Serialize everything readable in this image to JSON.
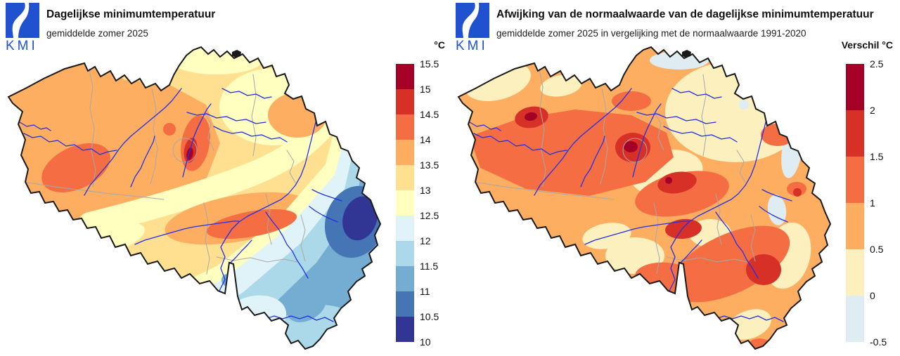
{
  "brand": {
    "logo_text": "KMI",
    "color": "#2052d0"
  },
  "left_panel": {
    "title": "Dagelijkse minimumtemperatuur",
    "subtitle": "gemiddelde zomer 2025",
    "legend": {
      "unit": "°C",
      "colors": [
        "#a50026",
        "#d73027",
        "#f46d43",
        "#fdae61",
        "#fee090",
        "#ffffbf",
        "#e0f3f8",
        "#abd9e9",
        "#74add1",
        "#4575b4",
        "#313695"
      ],
      "ticks": [
        "15.5",
        "15",
        "14.5",
        "14",
        "13.5",
        "13",
        "12.5",
        "12",
        "11.5",
        "11",
        "10.5",
        "10"
      ]
    }
  },
  "right_panel": {
    "title": "Afwijking van de normaalwaarde van de dagelijkse minimumtemperatuur",
    "subtitle": "gemiddelde zomer 2025 in vergelijking met de normaalwaarde 1991-2020",
    "legend": {
      "unit": "Verschil °C",
      "colors": [
        "#a50026",
        "#d73027",
        "#f46d43",
        "#fdae61",
        "#fdf0bf",
        "#dfecf1"
      ],
      "ticks": [
        "2.5",
        "2",
        "1.5",
        "1",
        "0.5",
        "0",
        "-0.5"
      ]
    }
  },
  "map_colors": {
    "outline": "#1a1a1a",
    "river": "#2230e8",
    "province": "#a8a8a8",
    "background": "#ffffff"
  },
  "chart_data": [
    {
      "type": "contour-map",
      "region": "Belgium",
      "title": "Dagelijkse minimumtemperatuur",
      "subtitle": "gemiddelde zomer 2025",
      "unit": "°C",
      "scale_min": 10,
      "scale_max": 15.5,
      "scale_step": 0.5,
      "pattern": "Warmest (14 to >15 °C) in central and northwest Belgium with a maximum near Brussels and West Flanders; 13-14 °C over most of Flanders and Hainaut; cooling southeastward through the Ardennes (11-12.5 °C); coldest (10-10.5 °C) in the eastern High Fens"
    },
    {
      "type": "contour-map",
      "region": "Belgium",
      "title": "Afwijking van de normaalwaarde van de dagelijkse minimumtemperatuur",
      "subtitle": "gemiddelde zomer 2025 in vergelijking met de normaalwaarde 1991-2020",
      "unit": "Verschil °C",
      "scale_min": -0.5,
      "scale_max": 2.5,
      "scale_step": 0.5,
      "pattern": "Anomaly mostly +0.5 to +1.5 °C; local maxima above +2 °C in West Flanders and near Brussels; red patches (+1.5 to +2 °C) near Liège, Namur and the southeast; small slightly negative patches (-0.5 to 0 °C) along the northern and eastern borders"
    }
  ]
}
